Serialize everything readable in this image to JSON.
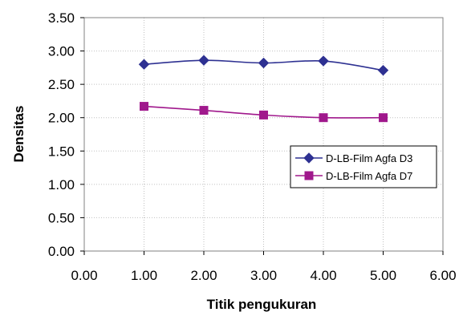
{
  "chart_data": {
    "type": "line",
    "title": "",
    "xlabel": "Titik pengukuran",
    "ylabel": "Densitas",
    "xlim": [
      0,
      6
    ],
    "ylim": [
      0,
      3.5
    ],
    "x_ticks": [
      0,
      1,
      2,
      3,
      4,
      5,
      6
    ],
    "y_ticks": [
      0,
      0.5,
      1,
      1.5,
      2,
      2.5,
      3,
      3.5
    ],
    "x_tick_labels": [
      "0.00",
      "1.00",
      "2.00",
      "3.00",
      "4.00",
      "5.00",
      "6.00"
    ],
    "y_tick_labels": [
      "0.00",
      "0.50",
      "1.00",
      "1.50",
      "2.00",
      "2.50",
      "3.00",
      "3.50"
    ],
    "grid": true,
    "legend_position": "right",
    "series": [
      {
        "name": "D-LB-Film Agfa D3",
        "color": "#2e3192",
        "marker": "diamond",
        "x": [
          1,
          2,
          3,
          4,
          5
        ],
        "y": [
          2.8,
          2.86,
          2.82,
          2.85,
          2.71
        ]
      },
      {
        "name": "D-LB-Film Agfa D7",
        "color": "#a0188c",
        "marker": "square",
        "x": [
          1,
          2,
          3,
          4,
          5
        ],
        "y": [
          2.17,
          2.11,
          2.04,
          2.0,
          2.0
        ]
      }
    ]
  }
}
